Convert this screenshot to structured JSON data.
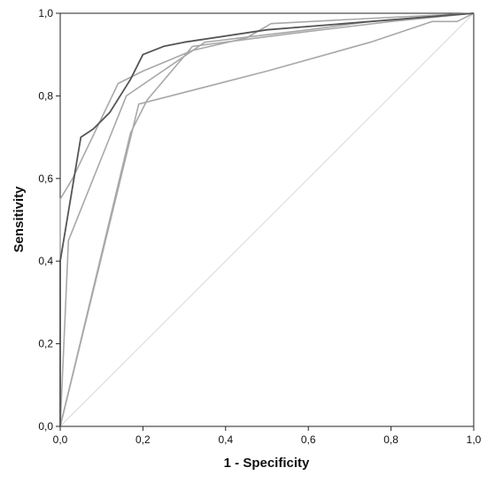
{
  "chart_data": {
    "type": "line",
    "xlabel": "1 - Specificity",
    "ylabel": "Sensitivity",
    "xlim": [
      0,
      1
    ],
    "ylim": [
      0,
      1
    ],
    "x_ticks": [
      "0,0",
      "0,2",
      "0,4",
      "0,6",
      "0,8",
      "1,0"
    ],
    "y_ticks": [
      "0,0",
      "0,2",
      "0,4",
      "0,6",
      "0,8",
      "1,0"
    ],
    "grid": false,
    "reference_line": {
      "x": [
        0,
        1
      ],
      "y": [
        0,
        1
      ],
      "color": "#d9d9d9"
    },
    "series": [
      {
        "color": "#555555",
        "points": [
          [
            0,
            0
          ],
          [
            0,
            0.4
          ],
          [
            0.02,
            0.52
          ],
          [
            0.05,
            0.7
          ],
          [
            0.08,
            0.72
          ],
          [
            0.12,
            0.76
          ],
          [
            0.17,
            0.84
          ],
          [
            0.2,
            0.9
          ],
          [
            0.25,
            0.92
          ],
          [
            0.3,
            0.93
          ],
          [
            0.5,
            0.96
          ],
          [
            0.75,
            0.98
          ],
          [
            1,
            1
          ]
        ]
      },
      {
        "color": "#a8a8a8",
        "points": [
          [
            0,
            0
          ],
          [
            0,
            0.55
          ],
          [
            0.03,
            0.6
          ],
          [
            0.14,
            0.83
          ],
          [
            0.2,
            0.86
          ],
          [
            0.32,
            0.91
          ],
          [
            0.45,
            0.94
          ],
          [
            0.51,
            0.975
          ],
          [
            0.7,
            0.985
          ],
          [
            1,
            1
          ]
        ]
      },
      {
        "color": "#a8a8a8",
        "points": [
          [
            0,
            0
          ],
          [
            0.02,
            0.45
          ],
          [
            0.16,
            0.8
          ],
          [
            0.35,
            0.93
          ],
          [
            0.6,
            0.96
          ],
          [
            0.75,
            0.98
          ],
          [
            1,
            1
          ]
        ]
      },
      {
        "color": "#a8a8a8",
        "points": [
          [
            0,
            0
          ],
          [
            0.17,
            0.71
          ],
          [
            0.21,
            0.79
          ],
          [
            0.32,
            0.92
          ],
          [
            0.55,
            0.95
          ],
          [
            0.8,
            0.98
          ],
          [
            1,
            1
          ]
        ]
      },
      {
        "color": "#a8a8a8",
        "points": [
          [
            0,
            0
          ],
          [
            0.19,
            0.78
          ],
          [
            0.5,
            0.86
          ],
          [
            0.75,
            0.93
          ],
          [
            0.9,
            0.98
          ],
          [
            0.96,
            0.98
          ],
          [
            1,
            1
          ]
        ]
      }
    ]
  }
}
